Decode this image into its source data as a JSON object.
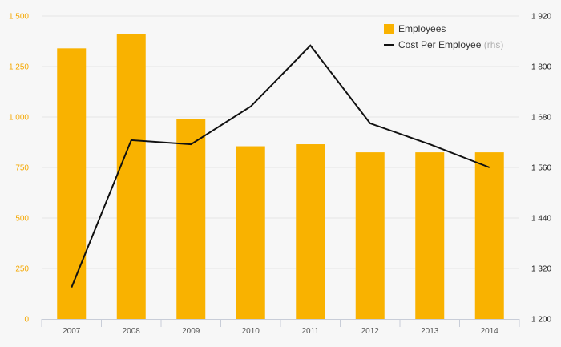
{
  "chart_data": {
    "type": "bar",
    "categories": [
      "2007",
      "2008",
      "2009",
      "2010",
      "2011",
      "2012",
      "2013",
      "2014"
    ],
    "series": [
      {
        "name": "Employees",
        "type": "bar",
        "axis": "left",
        "color": "#f9b200",
        "values": [
          1340,
          1410,
          990,
          855,
          865,
          825,
          825,
          825
        ]
      },
      {
        "name": "Cost Per Employee",
        "name_suffix": "(rhs)",
        "type": "line",
        "axis": "right",
        "color": "#111111",
        "values": [
          1275,
          1625,
          1615,
          1705,
          1850,
          1665,
          1615,
          1560
        ]
      }
    ],
    "y_left": {
      "ylim": [
        0,
        1500
      ],
      "ticks": [
        0,
        250,
        500,
        750,
        1000,
        1250,
        1500
      ],
      "tick_labels": [
        "0",
        "250",
        "500",
        "750",
        "1 000",
        "1 250",
        "1 500"
      ],
      "color": "#f5a800"
    },
    "y_right": {
      "ylim": [
        1200,
        1920
      ],
      "ticks": [
        1200,
        1320,
        1440,
        1560,
        1680,
        1800,
        1920
      ],
      "tick_labels": [
        "1 200",
        "1 320",
        "1 440",
        "1 560",
        "1 680",
        "1 800",
        "1 920"
      ],
      "color": "#222222"
    },
    "grid": true,
    "legend_position": "top-right",
    "title": "",
    "xlabel": "",
    "ylabel": ""
  }
}
